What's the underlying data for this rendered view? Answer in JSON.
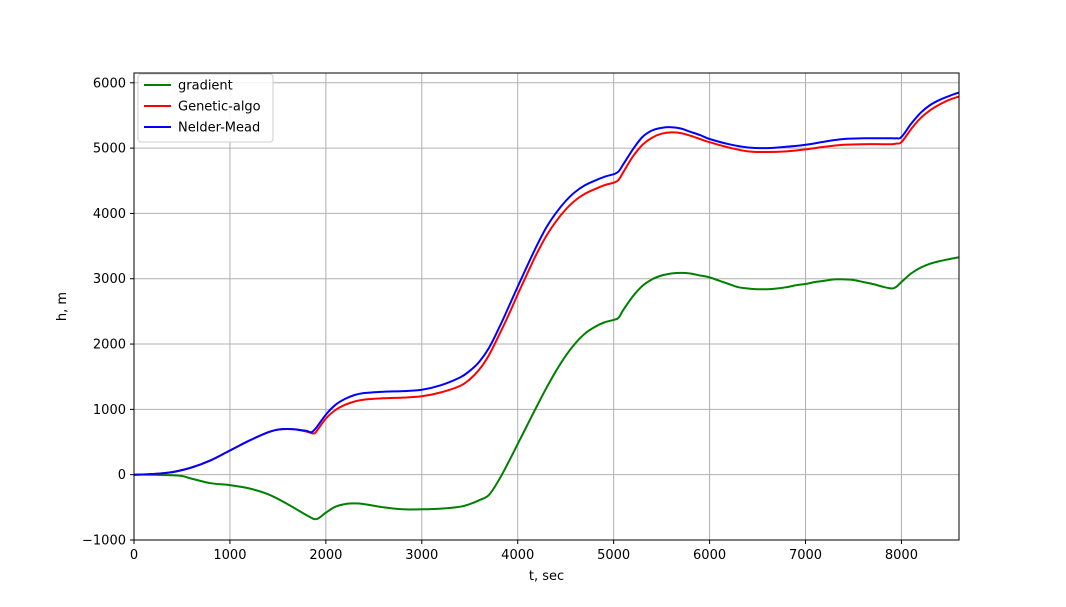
{
  "chart_data": {
    "type": "line",
    "title": "",
    "xlabel": "t, sec",
    "ylabel": "h, m",
    "xlim": [
      0,
      8600
    ],
    "ylim": [
      -1000,
      6150
    ],
    "xticks": [
      0,
      1000,
      2000,
      3000,
      4000,
      5000,
      6000,
      7000,
      8000
    ],
    "yticks": [
      -1000,
      0,
      1000,
      2000,
      3000,
      4000,
      5000,
      6000
    ],
    "xtick_labels": [
      "0",
      "1000",
      "2000",
      "3000",
      "4000",
      "5000",
      "6000",
      "7000",
      "8000"
    ],
    "ytick_labels": [
      "−1000",
      "0",
      "1000",
      "2000",
      "3000",
      "4000",
      "5000",
      "6000"
    ],
    "grid": true,
    "legend_position": "top-left",
    "series": [
      {
        "name": "gradient",
        "color": "#008000",
        "x": [
          0,
          200,
          400,
          500,
          600,
          800,
          1000,
          1200,
          1400,
          1600,
          1800,
          1900,
          2000,
          2100,
          2200,
          2300,
          2400,
          2600,
          2800,
          3000,
          3200,
          3400,
          3500,
          3600,
          3700,
          3800,
          3900,
          4000,
          4100,
          4200,
          4300,
          4400,
          4500,
          4600,
          4700,
          4800,
          4900,
          5000,
          5050,
          5100,
          5200,
          5300,
          5400,
          5500,
          5600,
          5700,
          5800,
          5900,
          6000,
          6100,
          6200,
          6300,
          6400,
          6500,
          6600,
          6700,
          6800,
          6900,
          7000,
          7100,
          7200,
          7300,
          7400,
          7500,
          7600,
          7700,
          7800,
          7900,
          7950,
          8000,
          8100,
          8200,
          8300,
          8400,
          8500,
          8600
        ],
        "y": [
          0,
          0,
          -10,
          -20,
          -60,
          -130,
          -160,
          -210,
          -300,
          -450,
          -620,
          -680,
          -580,
          -490,
          -450,
          -440,
          -450,
          -500,
          -530,
          -530,
          -520,
          -490,
          -450,
          -390,
          -310,
          -90,
          180,
          470,
          760,
          1050,
          1330,
          1590,
          1820,
          2010,
          2160,
          2260,
          2330,
          2370,
          2400,
          2520,
          2730,
          2890,
          2990,
          3050,
          3080,
          3090,
          3080,
          3050,
          3020,
          2970,
          2920,
          2870,
          2850,
          2840,
          2840,
          2850,
          2870,
          2900,
          2920,
          2950,
          2970,
          2990,
          2990,
          2980,
          2950,
          2920,
          2880,
          2850,
          2880,
          2950,
          3080,
          3170,
          3230,
          3270,
          3300,
          3330
        ]
      },
      {
        "name": "Genetic-algo",
        "color": "#ff0000",
        "x": [
          0,
          200,
          400,
          600,
          800,
          1000,
          1200,
          1400,
          1500,
          1600,
          1700,
          1800,
          1870,
          1900,
          2000,
          2100,
          2200,
          2300,
          2400,
          2600,
          2800,
          3000,
          3200,
          3400,
          3500,
          3600,
          3700,
          3800,
          3900,
          4000,
          4100,
          4200,
          4300,
          4400,
          4500,
          4600,
          4700,
          4800,
          4900,
          5000,
          5050,
          5100,
          5200,
          5300,
          5400,
          5500,
          5600,
          5700,
          5800,
          5900,
          6000,
          6200,
          6400,
          6600,
          6800,
          7000,
          7200,
          7400,
          7600,
          7800,
          7900,
          7950,
          8000,
          8100,
          8200,
          8300,
          8400,
          8500,
          8600
        ],
        "y": [
          0,
          10,
          40,
          110,
          220,
          370,
          520,
          650,
          690,
          700,
          690,
          660,
          630,
          660,
          860,
          990,
          1070,
          1120,
          1150,
          1170,
          1180,
          1200,
          1260,
          1360,
          1460,
          1610,
          1830,
          2120,
          2430,
          2760,
          3080,
          3390,
          3660,
          3880,
          4060,
          4200,
          4300,
          4370,
          4430,
          4470,
          4510,
          4630,
          4870,
          5050,
          5160,
          5220,
          5240,
          5230,
          5190,
          5140,
          5090,
          5010,
          4950,
          4940,
          4950,
          4980,
          5020,
          5050,
          5060,
          5060,
          5060,
          5070,
          5090,
          5290,
          5460,
          5580,
          5670,
          5740,
          5790
        ]
      },
      {
        "name": "Nelder-Mead",
        "color": "#0000ff",
        "x": [
          0,
          200,
          400,
          600,
          800,
          1000,
          1200,
          1400,
          1500,
          1600,
          1700,
          1800,
          1850,
          1900,
          2000,
          2100,
          2200,
          2300,
          2400,
          2600,
          2800,
          3000,
          3200,
          3400,
          3500,
          3600,
          3700,
          3800,
          3900,
          4000,
          4100,
          4200,
          4300,
          4400,
          4500,
          4600,
          4700,
          4800,
          4900,
          5000,
          5050,
          5100,
          5200,
          5300,
          5400,
          5500,
          5600,
          5700,
          5800,
          5900,
          6000,
          6200,
          6400,
          6600,
          6800,
          7000,
          7200,
          7400,
          7600,
          7800,
          7900,
          7950,
          8000,
          8100,
          8200,
          8300,
          8400,
          8500,
          8600
        ],
        "y": [
          0,
          10,
          40,
          110,
          220,
          370,
          520,
          650,
          690,
          700,
          690,
          670,
          650,
          720,
          920,
          1070,
          1160,
          1220,
          1250,
          1270,
          1280,
          1300,
          1370,
          1490,
          1590,
          1730,
          1940,
          2230,
          2550,
          2880,
          3200,
          3510,
          3790,
          4010,
          4190,
          4330,
          4430,
          4500,
          4560,
          4600,
          4640,
          4750,
          4980,
          5170,
          5270,
          5310,
          5320,
          5300,
          5250,
          5200,
          5140,
          5060,
          5010,
          5000,
          5020,
          5050,
          5100,
          5140,
          5150,
          5150,
          5150,
          5150,
          5170,
          5370,
          5540,
          5660,
          5740,
          5800,
          5850
        ]
      }
    ]
  }
}
